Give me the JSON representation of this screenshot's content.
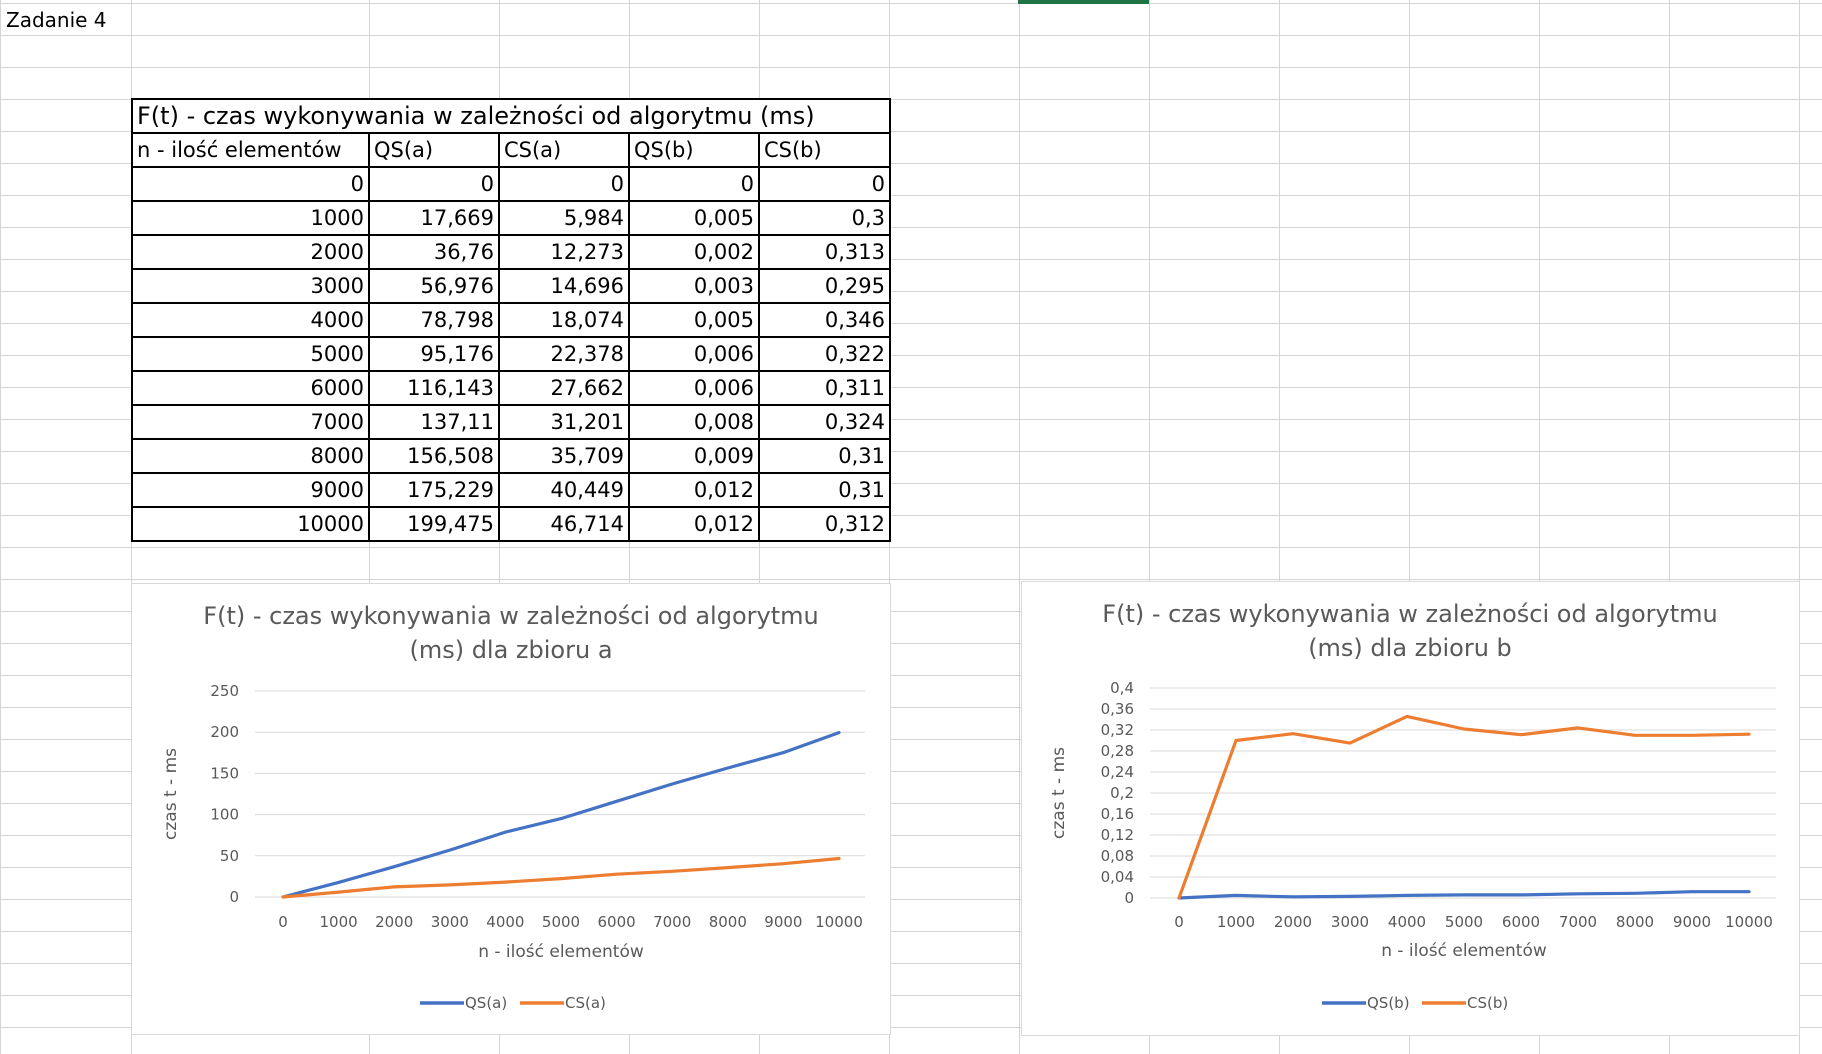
{
  "sheet": {
    "cell_label": "Zadanie 4"
  },
  "table": {
    "title": "F(t) - czas wykonywania w zależności od algorytmu (ms)",
    "headers": [
      "n - ilość elementów",
      "QS(a)",
      "CS(a)",
      "QS(b)",
      "CS(b)"
    ],
    "rows": [
      [
        "0",
        "0",
        "0",
        "0",
        "0"
      ],
      [
        "1000",
        "17,669",
        "5,984",
        "0,005",
        "0,3"
      ],
      [
        "2000",
        "36,76",
        "12,273",
        "0,002",
        "0,313"
      ],
      [
        "3000",
        "56,976",
        "14,696",
        "0,003",
        "0,295"
      ],
      [
        "4000",
        "78,798",
        "18,074",
        "0,005",
        "0,346"
      ],
      [
        "5000",
        "95,176",
        "22,378",
        "0,006",
        "0,322"
      ],
      [
        "6000",
        "116,143",
        "27,662",
        "0,006",
        "0,311"
      ],
      [
        "7000",
        "137,11",
        "31,201",
        "0,008",
        "0,324"
      ],
      [
        "8000",
        "156,508",
        "35,709",
        "0,009",
        "0,31"
      ],
      [
        "9000",
        "175,229",
        "40,449",
        "0,012",
        "0,31"
      ],
      [
        "10000",
        "199,475",
        "46,714",
        "0,012",
        "0,312"
      ]
    ]
  },
  "chart_data": [
    {
      "type": "line",
      "title_lines": [
        "F(t) - czas wykonywania w zależności od algorytmu",
        "(ms) dla zbioru a"
      ],
      "xlabel": "n - ilość elementów",
      "ylabel": "czas t - ms",
      "x": [
        0,
        1000,
        2000,
        3000,
        4000,
        5000,
        6000,
        7000,
        8000,
        9000,
        10000
      ],
      "ylim": [
        0,
        250
      ],
      "yticks": [
        0,
        50,
        100,
        150,
        200,
        250
      ],
      "ytick_labels": [
        "0",
        "50",
        "100",
        "150",
        "200",
        "250"
      ],
      "grid": true,
      "legend": "bottom",
      "series": [
        {
          "name": "QS(a)",
          "color": "#4472C4",
          "values": [
            0,
            17.669,
            36.76,
            56.976,
            78.798,
            95.176,
            116.143,
            137.11,
            156.508,
            175.229,
            199.475
          ]
        },
        {
          "name": "CS(a)",
          "color": "#ED7D31",
          "values": [
            0,
            5.984,
            12.273,
            14.696,
            18.074,
            22.378,
            27.662,
            31.201,
            35.709,
            40.449,
            46.714
          ]
        }
      ]
    },
    {
      "type": "line",
      "title_lines": [
        "F(t) - czas wykonywania w zależności od algorytmu",
        "(ms) dla zbioru b"
      ],
      "xlabel": "n - ilość elementów",
      "ylabel": "czas t - ms",
      "x": [
        0,
        1000,
        2000,
        3000,
        4000,
        5000,
        6000,
        7000,
        8000,
        9000,
        10000
      ],
      "ylim": [
        0,
        0.4
      ],
      "yticks": [
        0,
        0.04,
        0.08,
        0.12,
        0.16,
        0.2,
        0.24,
        0.28,
        0.32,
        0.36,
        0.4
      ],
      "ytick_labels": [
        "0",
        "0,04",
        "0,08",
        "0,12",
        "0,16",
        "0,2",
        "0,24",
        "0,28",
        "0,32",
        "0,36",
        "0,4"
      ],
      "grid": true,
      "legend": "bottom",
      "series": [
        {
          "name": "QS(b)",
          "color": "#4472C4",
          "values": [
            0,
            0.005,
            0.002,
            0.003,
            0.005,
            0.006,
            0.006,
            0.008,
            0.009,
            0.012,
            0.012
          ]
        },
        {
          "name": "CS(b)",
          "color": "#ED7D31",
          "values": [
            0,
            0.3,
            0.313,
            0.295,
            0.346,
            0.322,
            0.311,
            0.324,
            0.31,
            0.31,
            0.312
          ]
        }
      ]
    }
  ]
}
